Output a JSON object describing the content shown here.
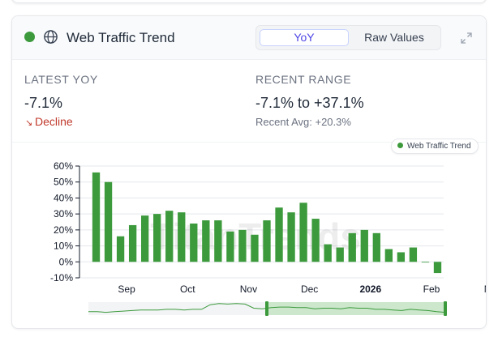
{
  "widget": {
    "title": "Web Traffic Trend",
    "status_color": "#3c9a3c",
    "icons": {
      "status": "status-dot-icon",
      "globe": "globe-icon",
      "expand": "expand-icon"
    },
    "toggle": {
      "active": "YoY",
      "options": [
        "YoY",
        "Raw Values"
      ]
    }
  },
  "stats": {
    "latest_label": "LATEST YOY",
    "latest_value": "-7.1%",
    "trend_label": "Decline",
    "trend_color": "#c0392b",
    "range_label": "RECENT RANGE",
    "range_value": "-7.1% to +37.1%",
    "avg_label": "Recent Avg: +20.3%"
  },
  "chart_data": {
    "type": "bar",
    "legend": {
      "entries": [
        "Web Traffic Trend"
      ],
      "position": "top-right"
    },
    "bar_color": "#3c9a3c",
    "ylim": [
      -10,
      60
    ],
    "yticks": [
      "-10%",
      "0%",
      "10%",
      "20%",
      "30%",
      "40%",
      "50%",
      "60%"
    ],
    "ytick_values": [
      -10,
      0,
      10,
      20,
      30,
      40,
      50,
      60
    ],
    "xticks": [
      "Sep",
      "Oct",
      "Nov",
      "Dec",
      "2026",
      "Feb",
      "Mar"
    ],
    "xtick_positions": [
      3,
      8,
      13,
      18,
      23,
      28,
      33
    ],
    "values": [
      56,
      50,
      16,
      23,
      29,
      30,
      32,
      31,
      24,
      26,
      26,
      19,
      20,
      17,
      26,
      34,
      31,
      37,
      27,
      11,
      9,
      18,
      20,
      18,
      8,
      6,
      9,
      0,
      -7
    ],
    "grid": true
  },
  "navigator": {
    "line_values": [
      3,
      3,
      2,
      3,
      4,
      5,
      6,
      6,
      6,
      7,
      7,
      6,
      7,
      7,
      15,
      17,
      16,
      17,
      16,
      9,
      8,
      10,
      11,
      11,
      10,
      10,
      8,
      9,
      9,
      8,
      10,
      9,
      9,
      7,
      7,
      6,
      5,
      7,
      6,
      5,
      3,
      2
    ],
    "selected_range": [
      0.5,
      1.0
    ]
  }
}
